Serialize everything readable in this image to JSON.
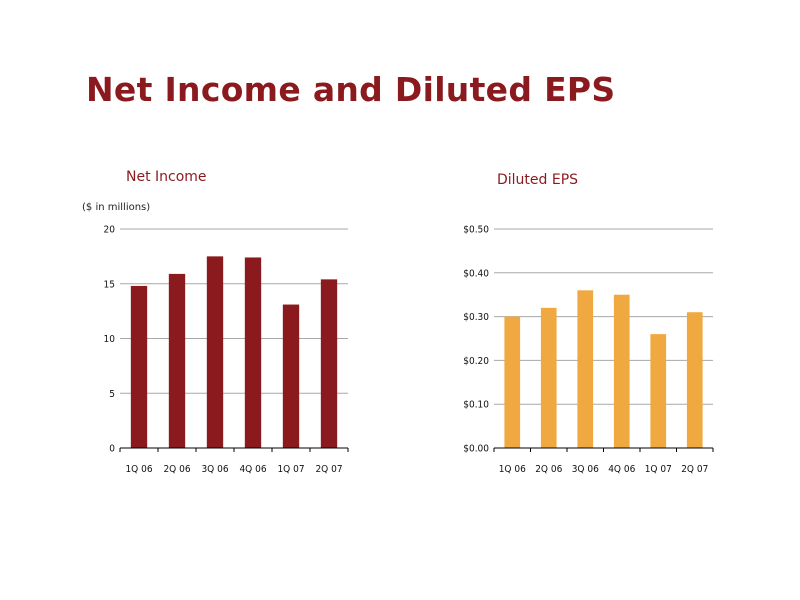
{
  "slide": {
    "title": "Net Income and Diluted EPS"
  },
  "chart_data": [
    {
      "id": "net-income",
      "type": "bar",
      "title": "Net Income",
      "units": "($ in millions)",
      "categories": [
        "1Q 06",
        "2Q 06",
        "3Q 06",
        "4Q 06",
        "1Q 07",
        "2Q 07"
      ],
      "values": [
        14.8,
        15.9,
        17.5,
        17.4,
        13.1,
        15.4
      ],
      "ylim": [
        0,
        20
      ],
      "yticks": [
        0,
        5,
        10,
        15,
        20
      ],
      "ytick_labels": [
        "0",
        "5",
        "10",
        "15",
        "20"
      ],
      "grid": true,
      "color": "#8b1a1f"
    },
    {
      "id": "diluted-eps",
      "type": "bar",
      "title": "Diluted EPS",
      "categories": [
        "1Q 06",
        "2Q 06",
        "3Q 06",
        "4Q 06",
        "1Q 07",
        "2Q 07"
      ],
      "values": [
        0.3,
        0.32,
        0.36,
        0.35,
        0.26,
        0.31
      ],
      "ylim": [
        0,
        0.5
      ],
      "yticks": [
        0,
        0.1,
        0.2,
        0.3,
        0.4,
        0.5
      ],
      "ytick_labels": [
        "$0.00",
        "$0.10",
        "$0.20",
        "$0.30",
        "$0.40",
        "$0.50"
      ],
      "grid": true,
      "color": "#f0a941"
    }
  ]
}
